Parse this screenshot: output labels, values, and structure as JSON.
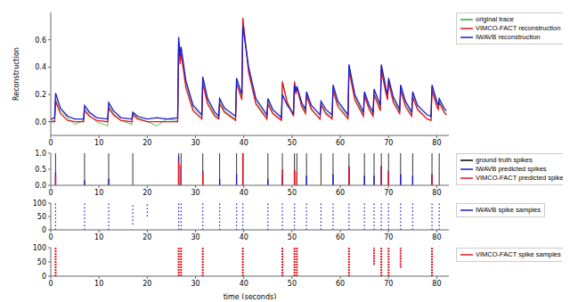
{
  "chart_data": [
    {
      "type": "line",
      "ylabel": "Reconstruction",
      "legend": "right",
      "xlim": [
        0,
        82.5
      ],
      "xticks": [
        0,
        10,
        20,
        30,
        40,
        50,
        60,
        70,
        80
      ],
      "ylim": [
        -0.1,
        0.8
      ],
      "yticks": [
        {
          "value": 0,
          "label": "0.0"
        },
        {
          "value": 0.2,
          "label": "0.2"
        },
        {
          "value": 0.4,
          "label": "0.4"
        },
        {
          "value": 0.6,
          "label": "0.6"
        }
      ],
      "x": [
        0,
        0.8,
        1,
        2,
        3.5,
        5,
        6.8,
        7,
        8,
        9.5,
        11.8,
        12,
        13,
        14.5,
        16.8,
        17,
        18,
        20,
        22,
        24,
        26.3,
        26.5,
        26.8,
        27,
        28,
        29.5,
        31.3,
        31.5,
        32.5,
        34,
        34.8,
        35,
        36,
        38.3,
        38.5,
        39.6,
        39.8,
        41,
        42.5,
        44.8,
        45,
        46,
        47.8,
        48,
        49,
        50.3,
        50.5,
        50.8,
        51,
        52,
        52.8,
        53,
        54,
        55.8,
        56,
        57,
        58.3,
        58.5,
        59.5,
        61.6,
        61.8,
        63,
        64.8,
        65,
        66,
        66.8,
        67,
        68.3,
        68.5,
        69.5,
        69.8,
        70,
        71,
        72.3,
        72.5,
        73.5,
        74.8,
        75,
        76,
        78,
        78.8,
        79,
        80,
        80.3,
        80.5,
        81.5,
        82
      ],
      "series": [
        {
          "name": "original trace",
          "color": "#33aa33",
          "values": [
            0.02,
            0,
            0.17,
            0.08,
            0.03,
            -0.02,
            0.01,
            0.1,
            0.05,
            0,
            -0.03,
            0.12,
            0.06,
            0.01,
            -0.02,
            0.06,
            0.03,
            0,
            -0.03,
            0.02,
            0.01,
            0.6,
            0.45,
            0.5,
            0.28,
            0.1,
            0.03,
            0.3,
            0.15,
            0.05,
            0.03,
            0.15,
            0.08,
            0.02,
            0.3,
            0.18,
            0.75,
            0.38,
            0.15,
            0.03,
            0.15,
            0.07,
            0.01,
            0.3,
            0.15,
            0.05,
            0.3,
            0.22,
            0.26,
            0.13,
            0.07,
            0.2,
            0.1,
            0.02,
            0.13,
            0.07,
            0.03,
            0.25,
            0.13,
            0.03,
            0.4,
            0.18,
            0.05,
            0.2,
            0.1,
            0.05,
            0.22,
            0.1,
            0.4,
            0.22,
            0.18,
            0.3,
            0.16,
            0.07,
            0.25,
            0.13,
            0.05,
            0.2,
            0.1,
            0.02,
            0.01,
            0.25,
            0.13,
            0.1,
            0.15,
            0.08,
            0.05
          ]
        },
        {
          "name": "VIMCO-FACT reconstruction",
          "color": "#e8141c",
          "values": [
            0,
            0,
            0.15,
            0.06,
            0.01,
            0,
            0,
            0.08,
            0.04,
            0.01,
            0,
            0.1,
            0.05,
            0.01,
            0,
            0.05,
            0.02,
            0,
            0,
            0,
            0,
            0.58,
            0.42,
            0.5,
            0.25,
            0.08,
            0.02,
            0.28,
            0.13,
            0.04,
            0.02,
            0.13,
            0.07,
            0.01,
            0.28,
            0.16,
            0.76,
            0.36,
            0.13,
            0.02,
            0.13,
            0.06,
            0.01,
            0.29,
            0.14,
            0.04,
            0.29,
            0.2,
            0.25,
            0.11,
            0.06,
            0.19,
            0.09,
            0.02,
            0.12,
            0.06,
            0.02,
            0.23,
            0.11,
            0.02,
            0.38,
            0.16,
            0.04,
            0.19,
            0.09,
            0.04,
            0.2,
            0.08,
            0.38,
            0.2,
            0.16,
            0.29,
            0.14,
            0.06,
            0.23,
            0.11,
            0.04,
            0.18,
            0.09,
            0.02,
            0.01,
            0.23,
            0.11,
            0.09,
            0.14,
            0.07,
            0.05
          ]
        },
        {
          "name": "IWAVB reconstruction",
          "color": "#1a1acc",
          "values": [
            0.02,
            0.03,
            0.21,
            0.1,
            0.04,
            0.02,
            0.02,
            0.12,
            0.07,
            0.03,
            0.02,
            0.14,
            0.08,
            0.03,
            0.02,
            0.07,
            0.04,
            0.02,
            0.03,
            0.02,
            0.03,
            0.62,
            0.48,
            0.55,
            0.3,
            0.12,
            0.05,
            0.33,
            0.17,
            0.07,
            0.04,
            0.17,
            0.1,
            0.04,
            0.32,
            0.2,
            0.7,
            0.4,
            0.17,
            0.05,
            0.17,
            0.09,
            0.03,
            0.2,
            0.12,
            0.06,
            0.27,
            0.22,
            0.26,
            0.14,
            0.09,
            0.22,
            0.12,
            0.05,
            0.15,
            0.09,
            0.05,
            0.27,
            0.15,
            0.05,
            0.42,
            0.2,
            0.07,
            0.22,
            0.12,
            0.07,
            0.24,
            0.12,
            0.42,
            0.24,
            0.2,
            0.32,
            0.18,
            0.09,
            0.27,
            0.15,
            0.07,
            0.22,
            0.12,
            0.05,
            0.04,
            0.27,
            0.15,
            0.12,
            0.17,
            0.1,
            0.08
          ]
        }
      ]
    },
    {
      "type": "spikes",
      "legend": "right",
      "xlim": [
        0,
        82.5
      ],
      "xticks": [
        0,
        10,
        20,
        30,
        40,
        50,
        60,
        70,
        80
      ],
      "ylim": [
        0,
        1
      ],
      "yticks": [
        {
          "value": 0,
          "label": "0.0"
        },
        {
          "value": 0.5,
          "label": "0.5"
        },
        {
          "value": 1,
          "label": "1.0"
        }
      ],
      "series": [
        {
          "name": "ground truth spikes",
          "color": "#000000",
          "x": [
            1,
            7,
            12,
            17,
            26.5,
            27,
            31.5,
            35,
            38.5,
            39.8,
            45,
            48,
            50.5,
            51,
            53,
            56,
            58.5,
            61.8,
            65,
            67,
            68.5,
            70,
            72.5,
            75,
            79,
            80.5
          ],
          "values": [
            1,
            1,
            1,
            1,
            1,
            1,
            1,
            1,
            1,
            1,
            1,
            1,
            1,
            1,
            1,
            1,
            1,
            1,
            1,
            1,
            1,
            1,
            1,
            1,
            1,
            1
          ]
        },
        {
          "name": "IWAVB predicted spikes",
          "color": "#1a1acc",
          "x": [
            1,
            7,
            12,
            26.5,
            27,
            31.5,
            35,
            38.5,
            39.8,
            45,
            48,
            50.5,
            53,
            58.5,
            61.8,
            65,
            67,
            68.5,
            70,
            72.5,
            75,
            79
          ],
          "values": [
            0.4,
            0.15,
            0.2,
            0.9,
            0.6,
            0.45,
            0.2,
            0.35,
            1,
            0.2,
            0.3,
            0.45,
            0.3,
            0.35,
            0.6,
            0.3,
            0.3,
            0.6,
            0.45,
            0.35,
            0.3,
            0.35
          ]
        },
        {
          "name": "VIMCO-FACT predicted spikes",
          "color": "#e8141c",
          "x": [
            1,
            26.5,
            27,
            31.5,
            39.8,
            48,
            50.5,
            51,
            61.8,
            68.5,
            70,
            79
          ],
          "values": [
            0.3,
            0.75,
            0.65,
            0.4,
            1,
            0.5,
            0.5,
            0.4,
            0.55,
            0.55,
            0.4,
            0.3
          ]
        }
      ]
    },
    {
      "type": "raster",
      "legend": "right",
      "xlim": [
        0,
        82.5
      ],
      "xticks": [
        0,
        10,
        20,
        30,
        40,
        50,
        60,
        70,
        80
      ],
      "ylim": [
        0,
        100
      ],
      "yticks": [
        0,
        50,
        100
      ],
      "series": [
        {
          "name": "IWAVB spike samples",
          "color": "#1a1acc",
          "x": [
            1,
            7,
            12,
            17,
            20,
            26.5,
            27,
            31.5,
            35,
            38.5,
            39.8,
            45,
            48,
            50.5,
            53,
            56,
            58.5,
            61.8,
            65,
            67,
            68.5,
            70,
            72.5,
            75,
            79,
            80.5
          ],
          "low": [
            0,
            0,
            0,
            20,
            50,
            0,
            0,
            0,
            0,
            0,
            0,
            0,
            0,
            0,
            0,
            0,
            0,
            0,
            0,
            0,
            0,
            0,
            0,
            0,
            0,
            0
          ],
          "high": [
            100,
            100,
            100,
            100,
            100,
            100,
            100,
            100,
            100,
            100,
            100,
            100,
            100,
            100,
            100,
            100,
            100,
            100,
            100,
            100,
            100,
            100,
            100,
            100,
            100,
            100
          ]
        }
      ]
    },
    {
      "type": "raster",
      "legend": "right",
      "xlabel": "time (seconds)",
      "xlim": [
        0,
        82.5
      ],
      "xticks": [
        0,
        10,
        20,
        30,
        40,
        50,
        60,
        70,
        80
      ],
      "ylim": [
        0,
        100
      ],
      "yticks": [
        0,
        50,
        100
      ],
      "series": [
        {
          "name": "VIMCO-FACT spike samples",
          "color": "#e8141c",
          "x": [
            1,
            26.5,
            27,
            31.5,
            39.8,
            48,
            50.5,
            51,
            61.8,
            67,
            68.5,
            70,
            72.5,
            79
          ],
          "low": [
            0,
            0,
            0,
            0,
            0,
            0,
            0,
            0,
            0,
            40,
            0,
            0,
            30,
            0
          ],
          "high": [
            100,
            100,
            100,
            100,
            100,
            100,
            100,
            100,
            100,
            100,
            100,
            100,
            100,
            100
          ]
        }
      ]
    }
  ]
}
